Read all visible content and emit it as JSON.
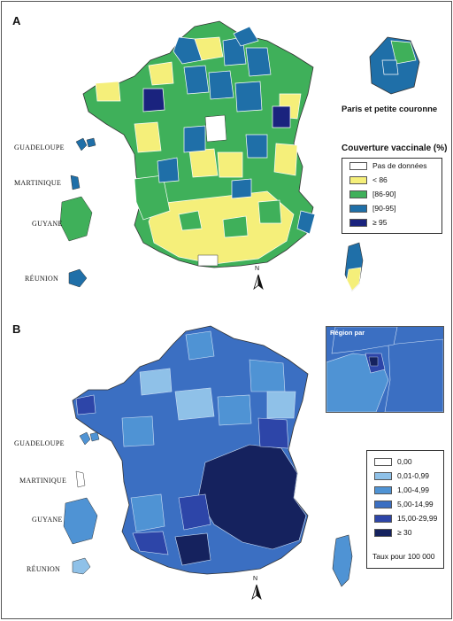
{
  "panel_a": {
    "letter": "A",
    "inset_title": "Paris et petite couronne",
    "legend": {
      "title": "Couverture vaccinale (%)",
      "items": [
        {
          "label": "Pas de données",
          "color": "#ffffff"
        },
        {
          "label": "< 86",
          "color": "#f5ef7a"
        },
        {
          "label": "[86-90]",
          "color": "#3fb05a"
        },
        {
          "label": "[90-95]",
          "color": "#1f6fa8"
        },
        {
          "label": "≥ 95",
          "color": "#1a237e"
        }
      ]
    },
    "overseas": [
      "GUADELOUPE",
      "MARTINIQUE",
      "GUYANE",
      "RÉUNION"
    ],
    "north": "N"
  },
  "panel_b": {
    "letter": "B",
    "inset_title": "Région par",
    "legend": {
      "items": [
        {
          "label": "0,00",
          "color": "#ffffff"
        },
        {
          "label": "0,01-0,99",
          "color": "#8fc1e8"
        },
        {
          "label": "1,00-4,99",
          "color": "#4f93d4"
        },
        {
          "label": "5,00-14,99",
          "color": "#3b6fc2"
        },
        {
          "label": "15,00-29,99",
          "color": "#2d45a8"
        },
        {
          "label": "≥ 30",
          "color": "#15225e"
        }
      ],
      "note": "Taux pour 100 000"
    },
    "overseas": [
      "GUADELOUPE",
      "MARTINIQUE",
      "GUYANE",
      "RÉUNION"
    ],
    "north": "N"
  }
}
